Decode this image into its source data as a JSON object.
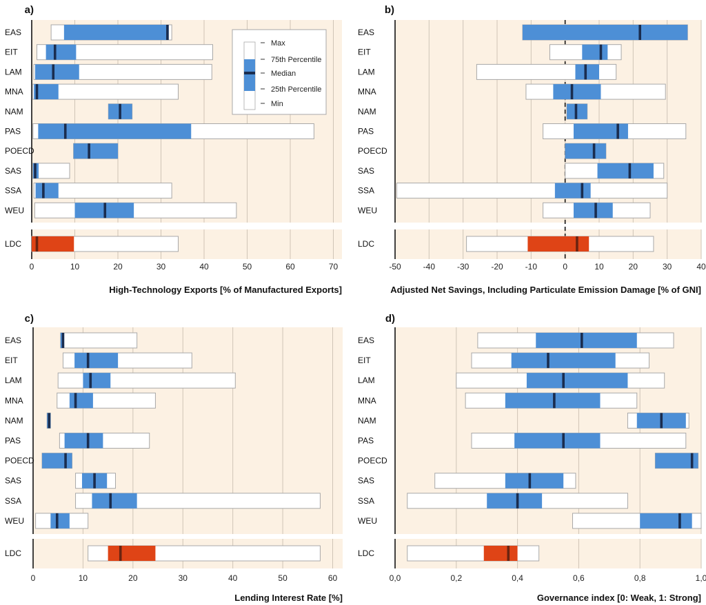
{
  "legend": {
    "max": "Max",
    "p75": "75th Percentile",
    "median": "Median",
    "p25": "25th Percentile",
    "min": "Min"
  },
  "colors": {
    "panel_bg": "#fcf1e3",
    "iqr": "#4d8fd6",
    "iqr_ldc": "#df4416",
    "median": "#1a2d4f",
    "median_ldc": "#6b2410",
    "outer_box": "#ffffff",
    "box_border": "#a8a8a8",
    "grid": "#cfc4b6"
  },
  "chart_data": [
    {
      "type": "boxplot",
      "label": "a)",
      "xlabel": "High-Technology Exports [% of Manufactured Exports]",
      "xlim": [
        0,
        72
      ],
      "ticks": [
        0,
        10,
        20,
        30,
        40,
        50,
        60,
        70
      ],
      "tick_labels": [
        "0",
        "10",
        "20",
        "30",
        "40",
        "50",
        "60",
        "70"
      ],
      "legend_position": "top-right",
      "rows": [
        {
          "name": "EAS",
          "min": 4.5,
          "q1": 7.5,
          "median": 31.5,
          "q3": 31.8,
          "max": 32.5
        },
        {
          "name": "EIT",
          "min": 1.2,
          "q1": 3.3,
          "median": 5.4,
          "q3": 10.3,
          "max": 42.0
        },
        {
          "name": "LAM",
          "min": 0.5,
          "q1": 0.8,
          "median": 5.0,
          "q3": 11.0,
          "max": 41.8
        },
        {
          "name": "MNA",
          "min": 0.2,
          "q1": 0.5,
          "median": 1.2,
          "q3": 6.2,
          "max": 34.0
        },
        {
          "name": "NAM",
          "min": 17.8,
          "q1": 17.8,
          "median": 20.5,
          "q3": 23.3,
          "max": 23.3
        },
        {
          "name": "PAS",
          "min": 0.3,
          "q1": 1.5,
          "median": 7.8,
          "q3": 37.0,
          "max": 65.5
        },
        {
          "name": "POECD",
          "min": 9.7,
          "q1": 9.7,
          "median": 13.3,
          "q3": 20.0,
          "max": 20.0
        },
        {
          "name": "SAS",
          "min": 0.2,
          "q1": 0.3,
          "median": 0.8,
          "q3": 1.6,
          "max": 8.8
        },
        {
          "name": "SSA",
          "min": 0.5,
          "q1": 0.9,
          "median": 2.7,
          "q3": 6.2,
          "max": 32.5
        },
        {
          "name": "WEU",
          "min": 0.7,
          "q1": 10.0,
          "median": 17.0,
          "q3": 23.7,
          "max": 47.5
        },
        {
          "name": "LDC",
          "min": 0.0,
          "q1": 0.0,
          "median": 1.2,
          "q3": 9.8,
          "max": 34.0
        }
      ]
    },
    {
      "type": "boxplot",
      "label": "b)",
      "xlabel": "Adjusted Net Savings, Including Particulate Emission Damage [% of GNI]",
      "xlim": [
        -50,
        40
      ],
      "ticks": [
        -50,
        -40,
        -30,
        -20,
        -10,
        0,
        10,
        20,
        30,
        40
      ],
      "tick_labels": [
        "-50",
        "-40",
        "-30",
        "-20",
        "-10",
        "0",
        "10",
        "20",
        "30",
        "40"
      ],
      "rows": [
        {
          "name": "EAS",
          "min": -12.5,
          "q1": -12.5,
          "median": 22.0,
          "q3": 36.0,
          "max": 36.0
        },
        {
          "name": "EIT",
          "min": -4.5,
          "q1": 5.0,
          "median": 10.5,
          "q3": 12.5,
          "max": 16.5
        },
        {
          "name": "LAM",
          "min": -26.0,
          "q1": 3.0,
          "median": 6.0,
          "q3": 10.0,
          "max": 15.0
        },
        {
          "name": "MNA",
          "min": -11.5,
          "q1": -3.5,
          "median": 2.0,
          "q3": 10.5,
          "max": 29.5
        },
        {
          "name": "NAM",
          "min": 0.5,
          "q1": 0.5,
          "median": 3.2,
          "q3": 6.5,
          "max": 6.5
        },
        {
          "name": "PAS",
          "min": -6.5,
          "q1": 2.5,
          "median": 15.5,
          "q3": 18.5,
          "max": 35.5
        },
        {
          "name": "POECD",
          "min": 0.0,
          "q1": 0.0,
          "median": 8.5,
          "q3": 12.0,
          "max": 12.0
        },
        {
          "name": "SAS",
          "min": 0.0,
          "q1": 9.5,
          "median": 19.0,
          "q3": 26.0,
          "max": 29.0
        },
        {
          "name": "SSA",
          "min": -49.5,
          "q1": -3.0,
          "median": 5.0,
          "q3": 7.5,
          "max": 30.0
        },
        {
          "name": "WEU",
          "min": -6.5,
          "q1": 2.5,
          "median": 9.0,
          "q3": 14.0,
          "max": 25.0
        },
        {
          "name": "LDC",
          "min": -29.0,
          "q1": -11.0,
          "median": 3.5,
          "q3": 7.0,
          "max": 26.0
        }
      ]
    },
    {
      "type": "boxplot",
      "label": "c)",
      "xlabel": "Lending Interest Rate [%]",
      "xlim": [
        0,
        62
      ],
      "ticks": [
        0,
        10,
        20,
        30,
        40,
        50,
        60
      ],
      "tick_labels": [
        "0",
        "10",
        "20",
        "30",
        "40",
        "50",
        "60"
      ],
      "rows": [
        {
          "name": "EAS",
          "min": 5.5,
          "q1": 5.5,
          "median": 6.0,
          "q3": 6.2,
          "max": 20.8
        },
        {
          "name": "EIT",
          "min": 6.0,
          "q1": 8.3,
          "median": 11.0,
          "q3": 17.0,
          "max": 31.8
        },
        {
          "name": "LAM",
          "min": 5.0,
          "q1": 10.0,
          "median": 11.5,
          "q3": 15.5,
          "max": 40.5
        },
        {
          "name": "MNA",
          "min": 4.8,
          "q1": 7.3,
          "median": 8.5,
          "q3": 12.0,
          "max": 24.5
        },
        {
          "name": "NAM",
          "min": 2.8,
          "q1": 2.8,
          "median": 3.2,
          "q3": 3.5,
          "max": 3.5
        },
        {
          "name": "PAS",
          "min": 5.3,
          "q1": 6.3,
          "median": 11.0,
          "q3": 14.0,
          "max": 23.3
        },
        {
          "name": "POECD",
          "min": 1.8,
          "q1": 1.8,
          "median": 6.5,
          "q3": 7.8,
          "max": 7.8
        },
        {
          "name": "SAS",
          "min": 8.5,
          "q1": 9.8,
          "median": 12.3,
          "q3": 14.8,
          "max": 16.5
        },
        {
          "name": "SSA",
          "min": 8.5,
          "q1": 11.8,
          "median": 15.5,
          "q3": 20.8,
          "max": 57.5
        },
        {
          "name": "WEU",
          "min": 0.5,
          "q1": 3.5,
          "median": 4.8,
          "q3": 7.3,
          "max": 11.0
        },
        {
          "name": "LDC",
          "min": 11.0,
          "q1": 15.0,
          "median": 17.5,
          "q3": 24.5,
          "max": 57.5
        }
      ]
    },
    {
      "type": "boxplot",
      "label": "d)",
      "xlabel": "Governance index [0: Weak, 1: Strong]",
      "xlim": [
        0,
        1.0
      ],
      "ticks": [
        0,
        0.2,
        0.4,
        0.6,
        0.8,
        1.0
      ],
      "tick_labels": [
        "0,0",
        "0,2",
        "0,4",
        "0,6",
        "0,8",
        "1,0"
      ],
      "rows": [
        {
          "name": "EAS",
          "min": 0.27,
          "q1": 0.46,
          "median": 0.61,
          "q3": 0.79,
          "max": 0.91
        },
        {
          "name": "EIT",
          "min": 0.25,
          "q1": 0.38,
          "median": 0.5,
          "q3": 0.72,
          "max": 0.83
        },
        {
          "name": "LAM",
          "min": 0.2,
          "q1": 0.43,
          "median": 0.55,
          "q3": 0.76,
          "max": 0.88
        },
        {
          "name": "MNA",
          "min": 0.23,
          "q1": 0.36,
          "median": 0.52,
          "q3": 0.67,
          "max": 0.79
        },
        {
          "name": "NAM",
          "min": 0.76,
          "q1": 0.79,
          "median": 0.87,
          "q3": 0.95,
          "max": 0.96
        },
        {
          "name": "PAS",
          "min": 0.25,
          "q1": 0.39,
          "median": 0.55,
          "q3": 0.67,
          "max": 0.95
        },
        {
          "name": "POECD",
          "min": 0.85,
          "q1": 0.85,
          "median": 0.97,
          "q3": 0.99,
          "max": 0.99
        },
        {
          "name": "SAS",
          "min": 0.13,
          "q1": 0.36,
          "median": 0.44,
          "q3": 0.55,
          "max": 0.59
        },
        {
          "name": "SSA",
          "min": 0.04,
          "q1": 0.3,
          "median": 0.4,
          "q3": 0.48,
          "max": 0.76
        },
        {
          "name": "WEU",
          "min": 0.58,
          "q1": 0.8,
          "median": 0.93,
          "q3": 0.97,
          "max": 1.0
        },
        {
          "name": "LDC",
          "min": 0.04,
          "q1": 0.29,
          "median": 0.37,
          "q3": 0.4,
          "max": 0.47
        }
      ]
    }
  ]
}
